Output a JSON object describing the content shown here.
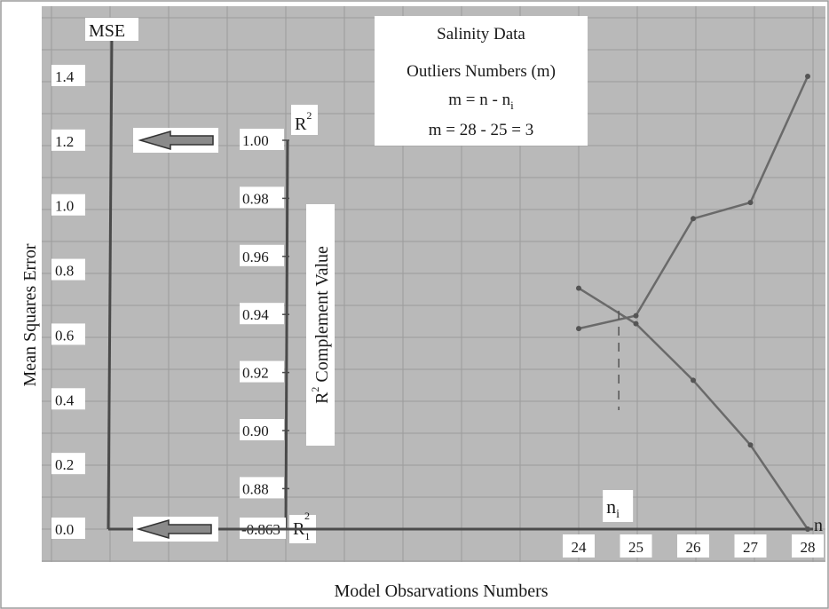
{
  "chart_data": {
    "type": "line",
    "info_box": {
      "line1": "Salinity Data",
      "line2": "Outliers Numbers (m)",
      "line3": "m = n - n",
      "line3_sub": "i",
      "line4": "m = 28 - 25 = 3"
    },
    "xlabel": "Model Obsarvations Numbers",
    "x_axis_symbol": "n",
    "x_ticks": [
      "24",
      "25",
      "26",
      "27",
      "28"
    ],
    "x": [
      24,
      25,
      26,
      27,
      28
    ],
    "ni_label": "n",
    "ni_sub": "i",
    "ni_x": 24.7,
    "mse_axis": {
      "label": "MSE",
      "title": "Mean  Squares  Error",
      "ticks": [
        "1.4",
        "1.2",
        "1.0",
        "0.8",
        "0.6",
        "0.4",
        "0.2",
        "0.0"
      ],
      "ylim": [
        0.0,
        1.4
      ]
    },
    "r2_axis": {
      "top_label": "R",
      "top_sup": "2",
      "bottom_label": "R",
      "bottom_sup": "2",
      "bottom_sub": "1",
      "title": "R",
      "title_sup": "2",
      "title_rest": " Complement Value",
      "ticks": [
        "1.00",
        "0.98",
        "0.96",
        "0.94",
        "0.92",
        "0.90",
        "0.88",
        "0.863"
      ],
      "ylim": [
        0.863,
        1.0
      ]
    },
    "series": [
      {
        "axis": "mse",
        "values": [
          0.62,
          0.66,
          0.96,
          1.01,
          1.4
        ]
      },
      {
        "axis": "mse",
        "values": [
          0.745,
          0.635,
          0.46,
          0.26,
          0.0
        ]
      }
    ],
    "grid": true,
    "colors": {
      "background": "#b9b9b9",
      "grid": "#9c9c9c",
      "series": "#6a6a6a",
      "axis": "#4a4a4a",
      "arrow": "#8a8a8a"
    }
  }
}
